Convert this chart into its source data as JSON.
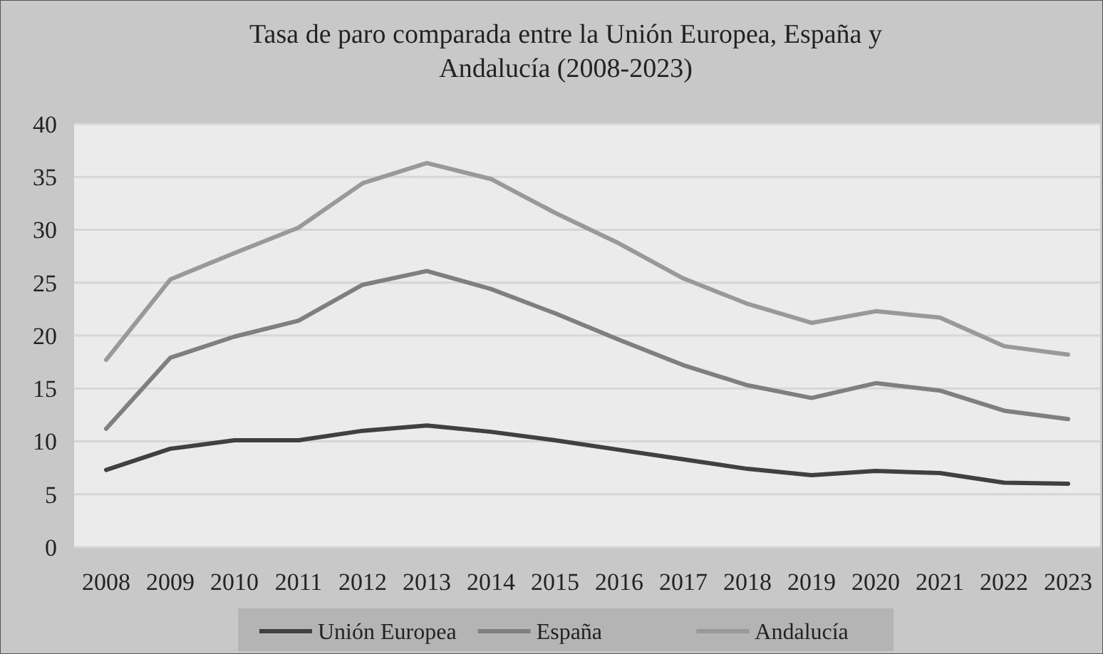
{
  "chart_data": {
    "type": "line",
    "title": "Tasa de paro comparada entre la Unión Europea, España y Andalucía (2008-2023)",
    "categories": [
      "2008",
      "2009",
      "2010",
      "2011",
      "2012",
      "2013",
      "2014",
      "2015",
      "2016",
      "2017",
      "2018",
      "2019",
      "2020",
      "2021",
      "2022",
      "2023"
    ],
    "series": [
      {
        "name": "Unión Europea",
        "color": "#404040",
        "values": [
          7.3,
          9.3,
          10.1,
          10.1,
          11.0,
          11.5,
          10.9,
          10.1,
          9.2,
          8.3,
          7.4,
          6.8,
          7.2,
          7.0,
          6.1,
          6.0
        ]
      },
      {
        "name": "España",
        "color": "#7f7f7f",
        "values": [
          11.2,
          17.9,
          19.9,
          21.4,
          24.8,
          26.1,
          24.4,
          22.1,
          19.6,
          17.2,
          15.3,
          14.1,
          15.5,
          14.8,
          12.9,
          12.1
        ]
      },
      {
        "name": "Andalucía",
        "color": "#999999",
        "values": [
          17.7,
          25.3,
          27.8,
          30.2,
          34.4,
          36.3,
          34.8,
          31.6,
          28.7,
          25.4,
          23.0,
          21.2,
          22.3,
          21.7,
          19.0,
          18.2
        ]
      }
    ],
    "ylim": [
      0,
      40
    ],
    "yticks": [
      0,
      5,
      10,
      15,
      20,
      25,
      30,
      35,
      40
    ],
    "grid": "y",
    "legend": "bottom",
    "marker": "none",
    "line_style": "solid"
  }
}
